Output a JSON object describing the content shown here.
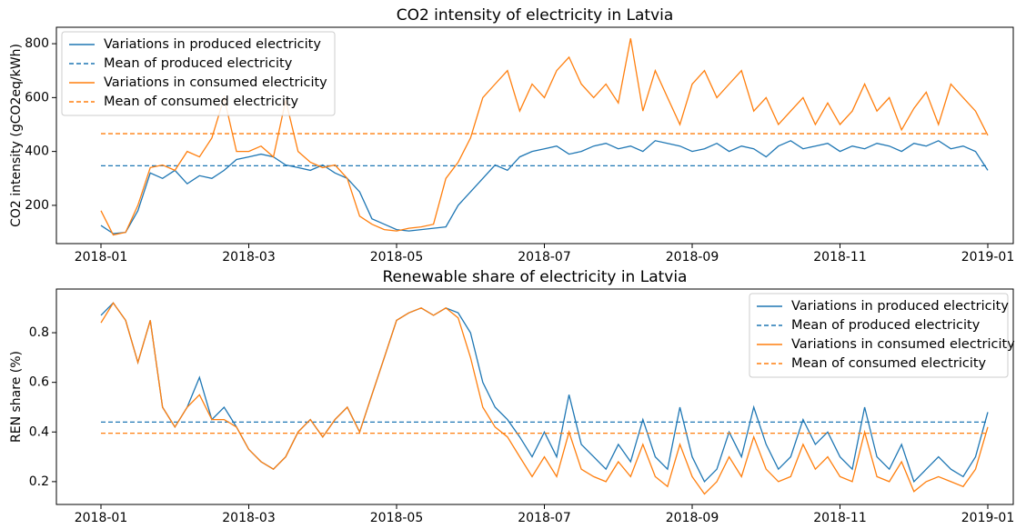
{
  "chart_data": [
    {
      "type": "line",
      "title": "CO2 intensity of electricity in Latvia",
      "ylabel": "CO2 intensity (gCO2eq/kWh)",
      "xticks": [
        "2018-01",
        "2018-03",
        "2018-05",
        "2018-07",
        "2018-09",
        "2018-11",
        "2019-01"
      ],
      "ylim": [
        58,
        861
      ],
      "yticks": [
        200,
        400,
        600,
        800
      ],
      "legend": "upper left",
      "series": [
        {
          "name": "Variations in produced electricity",
          "color": "#1f77b4",
          "linestyle": "solid",
          "values": [
            125,
            95,
            100,
            180,
            320,
            300,
            330,
            280,
            310,
            300,
            330,
            370,
            380,
            390,
            380,
            350,
            340,
            330,
            350,
            320,
            300,
            250,
            150,
            130,
            110,
            105,
            110,
            115,
            120,
            200,
            250,
            300,
            350,
            330,
            380,
            400,
            410,
            420,
            390,
            400,
            420,
            430,
            410,
            420,
            400,
            440,
            430,
            420,
            400,
            410,
            430,
            400,
            420,
            410,
            380,
            420,
            440,
            410,
            420,
            430,
            400,
            420,
            410,
            430,
            420,
            400,
            430,
            420,
            440,
            410,
            420,
            400,
            330
          ]
        },
        {
          "name": "Mean of produced electricity",
          "color": "#1f77b4",
          "linestyle": "dashed",
          "value": 347
        },
        {
          "name": "Variations in consumed electricity",
          "color": "#ff7f0e",
          "linestyle": "solid",
          "values": [
            180,
            90,
            100,
            200,
            340,
            350,
            330,
            400,
            380,
            450,
            600,
            400,
            400,
            420,
            380,
            590,
            400,
            360,
            340,
            350,
            300,
            160,
            130,
            110,
            105,
            115,
            120,
            130,
            300,
            360,
            450,
            600,
            650,
            700,
            550,
            650,
            600,
            700,
            750,
            650,
            600,
            650,
            580,
            820,
            550,
            700,
            600,
            500,
            650,
            700,
            600,
            650,
            700,
            550,
            600,
            500,
            550,
            600,
            500,
            580,
            500,
            550,
            650,
            550,
            600,
            480,
            560,
            620,
            500,
            650,
            600,
            550,
            460
          ]
        },
        {
          "name": "Mean of consumed electricity",
          "color": "#ff7f0e",
          "linestyle": "dashed",
          "value": 466
        }
      ]
    },
    {
      "type": "line",
      "title": "Renewable share of electricity in Latvia",
      "ylabel": "REN share (%)",
      "xticks": [
        "2018-01",
        "2018-03",
        "2018-05",
        "2018-07",
        "2018-09",
        "2018-11",
        "2019-01"
      ],
      "ylim": [
        0.108,
        0.976
      ],
      "yticks": [
        0.2,
        0.4,
        0.6,
        0.8
      ],
      "legend": "upper right",
      "series": [
        {
          "name": "Variations in produced electricity",
          "color": "#1f77b4",
          "linestyle": "solid",
          "values": [
            0.87,
            0.92,
            0.85,
            0.68,
            0.85,
            0.5,
            0.42,
            0.5,
            0.62,
            0.45,
            0.5,
            0.42,
            0.33,
            0.28,
            0.25,
            0.3,
            0.4,
            0.45,
            0.38,
            0.45,
            0.5,
            0.4,
            0.55,
            0.7,
            0.85,
            0.88,
            0.9,
            0.87,
            0.9,
            0.88,
            0.8,
            0.6,
            0.5,
            0.45,
            0.38,
            0.3,
            0.4,
            0.3,
            0.55,
            0.35,
            0.3,
            0.25,
            0.35,
            0.28,
            0.45,
            0.3,
            0.25,
            0.5,
            0.3,
            0.2,
            0.25,
            0.4,
            0.3,
            0.5,
            0.35,
            0.25,
            0.3,
            0.45,
            0.35,
            0.4,
            0.3,
            0.25,
            0.5,
            0.3,
            0.25,
            0.35,
            0.2,
            0.25,
            0.3,
            0.25,
            0.22,
            0.3,
            0.48
          ]
        },
        {
          "name": "Mean of produced electricity",
          "color": "#1f77b4",
          "linestyle": "dashed",
          "value": 0.44
        },
        {
          "name": "Variations in consumed electricity",
          "color": "#ff7f0e",
          "linestyle": "solid",
          "values": [
            0.84,
            0.92,
            0.85,
            0.68,
            0.85,
            0.5,
            0.42,
            0.5,
            0.55,
            0.45,
            0.45,
            0.42,
            0.33,
            0.28,
            0.25,
            0.3,
            0.4,
            0.45,
            0.38,
            0.45,
            0.5,
            0.4,
            0.55,
            0.7,
            0.85,
            0.88,
            0.9,
            0.87,
            0.9,
            0.86,
            0.7,
            0.5,
            0.42,
            0.38,
            0.3,
            0.22,
            0.3,
            0.22,
            0.4,
            0.25,
            0.22,
            0.2,
            0.28,
            0.22,
            0.35,
            0.22,
            0.18,
            0.35,
            0.22,
            0.15,
            0.2,
            0.3,
            0.22,
            0.38,
            0.25,
            0.2,
            0.22,
            0.35,
            0.25,
            0.3,
            0.22,
            0.2,
            0.4,
            0.22,
            0.2,
            0.28,
            0.16,
            0.2,
            0.22,
            0.2,
            0.18,
            0.25,
            0.42
          ]
        },
        {
          "name": "Mean of consumed electricity",
          "color": "#ff7f0e",
          "linestyle": "dashed",
          "value": 0.395
        }
      ]
    }
  ]
}
